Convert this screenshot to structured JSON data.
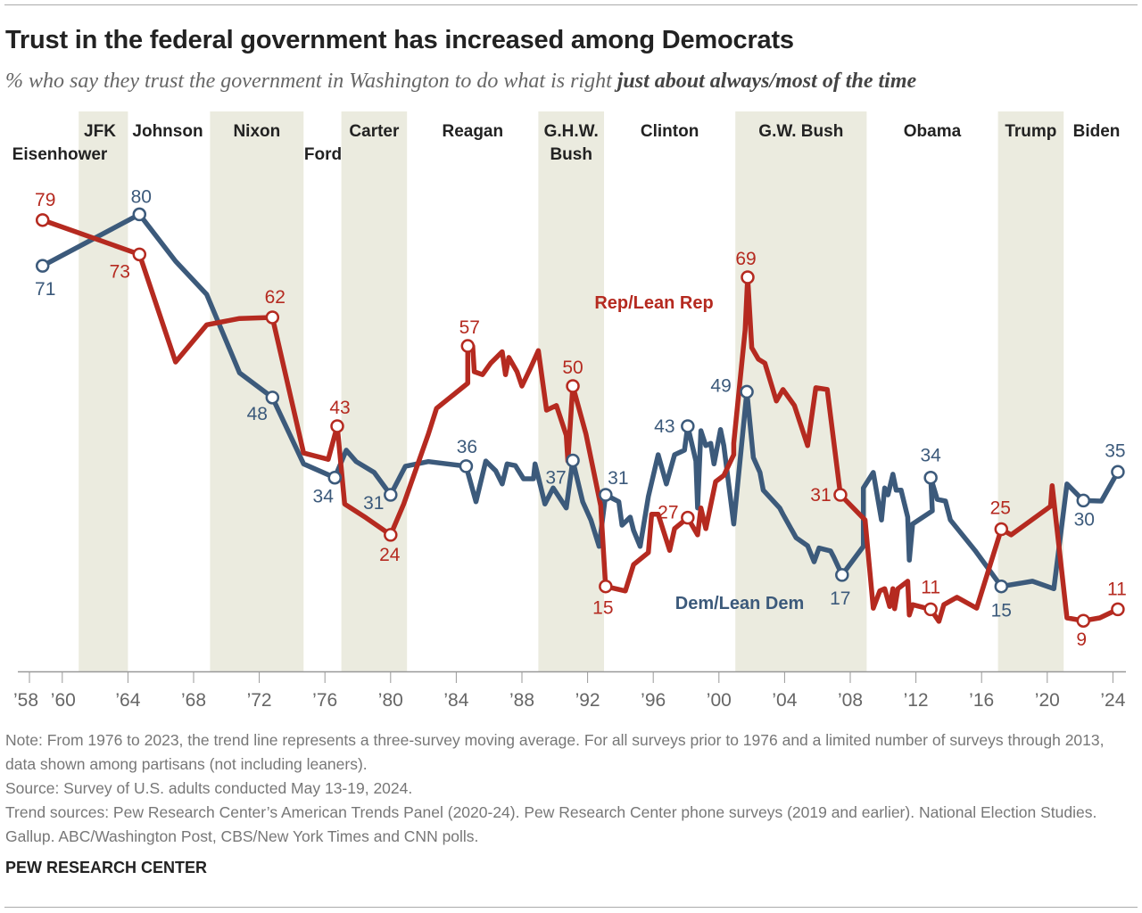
{
  "title": "Trust in the federal government has increased among Democrats",
  "subtitle_prefix": "% who say they trust the government in Washington to do what is right ",
  "subtitle_emphasis": "just about always/most of the time",
  "notes": [
    "Note: From 1976 to 2023, the trend line represents a three-survey moving average. For all surveys prior to 1976 and a limited number of surveys through 2013, data shown among partisans (not including leaners).",
    "Source: Survey of U.S. adults conducted May 13-19, 2024.",
    "Trend sources: Pew Research Center’s American Trends Panel (2020-24). Pew Research Center phone surveys (2019 and earlier). National Election Studies. Gallup. ABC/Washington Post, CBS/New York Times and CNN polls."
  ],
  "brand": "PEW RESEARCH CENTER",
  "colors": {
    "rep": "#b52a20",
    "dem": "#3c5a7b",
    "shade": "#ebebdf",
    "axis": "#999999",
    "tick_text": "#666666"
  },
  "chart_data": {
    "type": "line",
    "xlabel": "",
    "ylabel": "",
    "xlim": [
      1958,
      2024
    ],
    "ylim": [
      0,
      80
    ],
    "grid": false,
    "legend": "inline labels",
    "x_ticks": [
      {
        "year": 1958,
        "label": "’58"
      },
      {
        "year": 1960,
        "label": "’60"
      },
      {
        "year": 1964,
        "label": "’64"
      },
      {
        "year": 1968,
        "label": "’68"
      },
      {
        "year": 1972,
        "label": "’72"
      },
      {
        "year": 1976,
        "label": "’76"
      },
      {
        "year": 1980,
        "label": "’80"
      },
      {
        "year": 1984,
        "label": "’84"
      },
      {
        "year": 1988,
        "label": "’88"
      },
      {
        "year": 1992,
        "label": "’92"
      },
      {
        "year": 1996,
        "label": "’96"
      },
      {
        "year": 2000,
        "label": "’00"
      },
      {
        "year": 2004,
        "label": "’04"
      },
      {
        "year": 2008,
        "label": "’08"
      },
      {
        "year": 2012,
        "label": "’12"
      },
      {
        "year": 2016,
        "label": "’16"
      },
      {
        "year": 2020,
        "label": "’20"
      },
      {
        "year": 2024,
        "label": "’24"
      }
    ],
    "presidents": [
      {
        "name": "Eisenhower",
        "start": 1958,
        "end": 1961,
        "shaded": false
      },
      {
        "name": "JFK",
        "start": 1961,
        "end": 1964,
        "shaded": true
      },
      {
        "name": "Johnson",
        "start": 1964,
        "end": 1969,
        "shaded": false
      },
      {
        "name": "Nixon",
        "start": 1969,
        "end": 1974.7,
        "shaded": true
      },
      {
        "name": "Ford",
        "start": 1974.7,
        "end": 1977,
        "shaded": false
      },
      {
        "name": "Carter",
        "start": 1977,
        "end": 1981,
        "shaded": true
      },
      {
        "name": "Reagan",
        "start": 1981,
        "end": 1989,
        "shaded": false
      },
      {
        "name": "G.H.W. Bush",
        "line1": "G.H.W.",
        "line2": "Bush",
        "start": 1989,
        "end": 1993,
        "shaded": true
      },
      {
        "name": "Clinton",
        "start": 1993,
        "end": 2001,
        "shaded": false
      },
      {
        "name": "G.W. Bush",
        "start": 2001,
        "end": 2009,
        "shaded": true
      },
      {
        "name": "Obama",
        "start": 2009,
        "end": 2017,
        "shaded": false
      },
      {
        "name": "Trump",
        "start": 2017,
        "end": 2021,
        "shaded": true
      },
      {
        "name": "Biden",
        "start": 2021,
        "end": 2024.6,
        "shaded": false
      }
    ],
    "series": [
      {
        "name": "Rep/Lean Rep",
        "points": [
          [
            1958.8,
            79
          ],
          [
            1964.7,
            73
          ],
          [
            1966.9,
            54.2
          ],
          [
            1968.8,
            60.7
          ],
          [
            1970.8,
            61.8
          ],
          [
            1972.8,
            62
          ],
          [
            1974.7,
            38.3
          ],
          [
            1976.2,
            37.2
          ],
          [
            1976.75,
            43
          ],
          [
            1977.2,
            29.4
          ],
          [
            1978.5,
            27
          ],
          [
            1980.0,
            24
          ],
          [
            1980.8,
            29.4
          ],
          [
            1982.3,
            41.6
          ],
          [
            1982.8,
            46.1
          ],
          [
            1984.7,
            50.5
          ],
          [
            1984.7,
            57
          ],
          [
            1985.0,
            57
          ],
          [
            1985.1,
            52.5
          ],
          [
            1985.6,
            52
          ],
          [
            1986.1,
            54
          ],
          [
            1986.8,
            56
          ],
          [
            1987.0,
            52
          ],
          [
            1987.2,
            55
          ],
          [
            1987.7,
            52.5
          ],
          [
            1988.0,
            50
          ],
          [
            1988.5,
            53
          ],
          [
            1989.0,
            56.2
          ],
          [
            1989.5,
            45.8
          ],
          [
            1990.1,
            46.6
          ],
          [
            1990.7,
            41.4
          ],
          [
            1990.8,
            36.9
          ],
          [
            1991.1,
            50
          ],
          [
            1991.9,
            41.6
          ],
          [
            1992.8,
            29.1
          ],
          [
            1993.1,
            15
          ],
          [
            1994.3,
            14.2
          ],
          [
            1994.8,
            18.8
          ],
          [
            1995.7,
            20.9
          ],
          [
            1995.9,
            27.6
          ],
          [
            1996.3,
            27.6
          ],
          [
            1997.0,
            21.3
          ],
          [
            1997.3,
            25.1
          ],
          [
            1998.1,
            27
          ],
          [
            1998.7,
            24
          ],
          [
            1998.9,
            28.7
          ],
          [
            1999.2,
            25.1
          ],
          [
            1999.8,
            33.3
          ],
          [
            2000.3,
            34.4
          ],
          [
            2000.9,
            38
          ],
          [
            2000.9,
            40
          ],
          [
            2001.6,
            59.8
          ],
          [
            2001.75,
            69
          ],
          [
            2002.0,
            56.7
          ],
          [
            2002.4,
            54.7
          ],
          [
            2002.8,
            54
          ],
          [
            2003.5,
            47.4
          ],
          [
            2003.9,
            49.4
          ],
          [
            2004.6,
            46.6
          ],
          [
            2005.4,
            39.6
          ],
          [
            2005.9,
            49.7
          ],
          [
            2006.6,
            49.4
          ],
          [
            2007.4,
            31
          ],
          [
            2008.9,
            26.6
          ],
          [
            2009.4,
            11.2
          ],
          [
            2009.8,
            14.2
          ],
          [
            2010.1,
            14.6
          ],
          [
            2010.4,
            11.5
          ],
          [
            2010.6,
            14.6
          ],
          [
            2010.7,
            11.1
          ],
          [
            2010.9,
            14.6
          ],
          [
            2011.5,
            15.9
          ],
          [
            2011.6,
            10
          ],
          [
            2011.8,
            11.8
          ],
          [
            2012.9,
            11
          ],
          [
            2013.4,
            8.9
          ],
          [
            2013.7,
            11.8
          ],
          [
            2014.5,
            13.1
          ],
          [
            2015.7,
            11.2
          ],
          [
            2017.2,
            25
          ],
          [
            2017.8,
            24
          ],
          [
            2020.2,
            29
          ],
          [
            2020.3,
            32.6
          ],
          [
            2021.2,
            9.5
          ],
          [
            2022.2,
            9
          ],
          [
            2023.2,
            9.5
          ],
          [
            2024.3,
            11
          ]
        ],
        "labeled": [
          [
            1958.8,
            79
          ],
          [
            1964.7,
            73
          ],
          [
            1972.8,
            62
          ],
          [
            1976.75,
            43
          ],
          [
            1980.0,
            24
          ],
          [
            1984.7,
            57
          ],
          [
            1991.1,
            50
          ],
          [
            1993.1,
            15
          ],
          [
            1998.1,
            27
          ],
          [
            2001.75,
            69
          ],
          [
            2007.4,
            31
          ],
          [
            2012.9,
            11
          ],
          [
            2017.2,
            25
          ],
          [
            2022.2,
            9
          ],
          [
            2024.3,
            11
          ]
        ]
      },
      {
        "name": "Dem/Lean Dem",
        "points": [
          [
            1958.8,
            71
          ],
          [
            1964.7,
            80
          ],
          [
            1966.9,
            71.8
          ],
          [
            1968.8,
            66
          ],
          [
            1970.8,
            52.3
          ],
          [
            1972.8,
            48
          ],
          [
            1974.7,
            36.4
          ],
          [
            1976.6,
            34
          ],
          [
            1977.3,
            38.8
          ],
          [
            1977.9,
            36.8
          ],
          [
            1979.0,
            34.9
          ],
          [
            1980.0,
            31
          ],
          [
            1980.9,
            36
          ],
          [
            1982.3,
            36.8
          ],
          [
            1984.6,
            36
          ],
          [
            1985.2,
            29.8
          ],
          [
            1985.8,
            36.9
          ],
          [
            1986.4,
            35.2
          ],
          [
            1986.8,
            32.9
          ],
          [
            1987.1,
            36.4
          ],
          [
            1987.6,
            36.1
          ],
          [
            1988.1,
            33.8
          ],
          [
            1988.7,
            33.8
          ],
          [
            1988.8,
            36.4
          ],
          [
            1989.4,
            29.4
          ],
          [
            1989.9,
            32.2
          ],
          [
            1990.7,
            28.7
          ],
          [
            1991.1,
            37
          ],
          [
            1991.7,
            29.8
          ],
          [
            1992.2,
            26.6
          ],
          [
            1992.7,
            22
          ],
          [
            1993.1,
            31
          ],
          [
            1993.9,
            29.8
          ],
          [
            1994.1,
            25.7
          ],
          [
            1994.6,
            27.1
          ],
          [
            1994.8,
            24.8
          ],
          [
            1995.2,
            22
          ],
          [
            1995.7,
            30.7
          ],
          [
            1996.3,
            38
          ],
          [
            1996.8,
            32.9
          ],
          [
            1997.3,
            38
          ],
          [
            1997.9,
            38.8
          ],
          [
            1998.1,
            43
          ],
          [
            1998.6,
            36.9
          ],
          [
            1998.7,
            28.7
          ],
          [
            1998.9,
            42.2
          ],
          [
            1999.2,
            39.6
          ],
          [
            1999.5,
            40
          ],
          [
            1999.7,
            36.4
          ],
          [
            2000.1,
            42.4
          ],
          [
            2000.3,
            39.6
          ],
          [
            2000.9,
            25.9
          ],
          [
            2001.7,
            49
          ],
          [
            2002.1,
            37.5
          ],
          [
            2002.5,
            34.9
          ],
          [
            2002.7,
            31.8
          ],
          [
            2003.7,
            28.7
          ],
          [
            2003.9,
            27.6
          ],
          [
            2004.7,
            23.5
          ],
          [
            2005.4,
            22.1
          ],
          [
            2005.8,
            19.3
          ],
          [
            2006.1,
            21.7
          ],
          [
            2006.8,
            21.2
          ],
          [
            2007.0,
            20.1
          ],
          [
            2007.5,
            17
          ],
          [
            2008.8,
            22
          ],
          [
            2008.8,
            32.2
          ],
          [
            2009.4,
            34.9
          ],
          [
            2009.9,
            26.6
          ],
          [
            2010.1,
            32.2
          ],
          [
            2010.3,
            31
          ],
          [
            2010.6,
            34.6
          ],
          [
            2010.8,
            31.8
          ],
          [
            2011.1,
            31.8
          ],
          [
            2011.5,
            27.1
          ],
          [
            2011.6,
            19.6
          ],
          [
            2011.8,
            25.9
          ],
          [
            2013.0,
            28.2
          ],
          [
            2012.9,
            34
          ],
          [
            2013.3,
            30.2
          ],
          [
            2013.8,
            29.9
          ],
          [
            2014.1,
            26.6
          ],
          [
            2015.6,
            21.3
          ],
          [
            2017.2,
            15
          ],
          [
            2019.1,
            15.9
          ],
          [
            2020.4,
            14.6
          ],
          [
            2021.2,
            32.9
          ],
          [
            2022.2,
            30
          ],
          [
            2023.3,
            29.9
          ],
          [
            2024.3,
            35
          ]
        ],
        "labeled": [
          [
            1958.8,
            71
          ],
          [
            1964.7,
            80
          ],
          [
            1972.8,
            48
          ],
          [
            1976.6,
            34
          ],
          [
            1980.0,
            31
          ],
          [
            1984.6,
            36
          ],
          [
            1991.1,
            37
          ],
          [
            1993.1,
            31
          ],
          [
            1998.1,
            43
          ],
          [
            2001.7,
            49
          ],
          [
            2007.5,
            17
          ],
          [
            2012.9,
            34
          ],
          [
            2017.2,
            15
          ],
          [
            2022.2,
            30
          ],
          [
            2024.3,
            35
          ]
        ]
      }
    ]
  }
}
